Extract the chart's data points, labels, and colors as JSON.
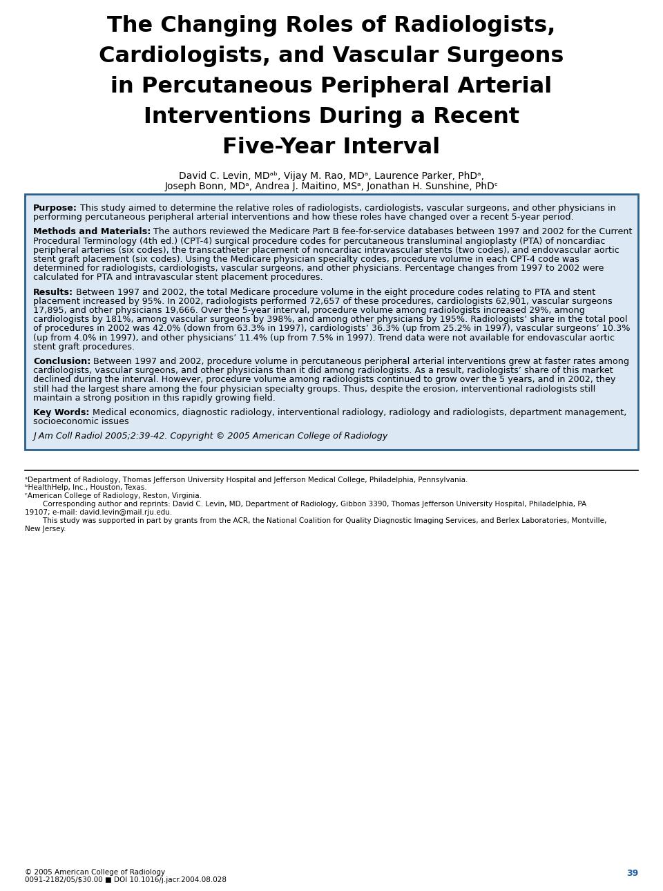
{
  "title_line1": "The Changing Roles of Radiologists,",
  "title_line2": "Cardiologists, and Vascular Surgeons",
  "title_line3": "in Percutaneous Peripheral Arterial",
  "title_line4": "Interventions During a Recent",
  "title_line5": "Five-Year Interval",
  "authors_line1": "David C. Levin, MDᵃᵇ, Vijay M. Rao, MDᵃ, Laurence Parker, PhDᵃ,",
  "authors_line2": "Joseph Bonn, MDᵃ, Andrea J. Maitino, MSᵃ, Jonathan H. Sunshine, PhDᶜ",
  "box_bg_color": "#dce8f3",
  "box_border_color": "#2a5f8a",
  "purpose_bold": "Purpose:",
  "purpose_text": " This study aimed to determine the relative roles of radiologists, cardiologists, vascular surgeons, and other physicians in performing percutaneous peripheral arterial interventions and how these roles have changed over a recent 5-year period.",
  "methods_bold": "Methods and Materials:",
  "methods_text": " The authors reviewed the Medicare Part B fee-for-service databases between 1997 and 2002 for the Current Procedural Terminology (4th ed.) (CPT-4) surgical procedure codes for percutaneous transluminal angioplasty (PTA) of noncardiac peripheral arteries (six codes), the transcatheter placement of noncardiac intravascular stents (two codes), and endovascular aortic stent graft placement (six codes). Using the Medicare physician specialty codes, procedure volume in each CPT-4 code was determined for radiologists, cardiologists, vascular surgeons, and other physicians. Percentage changes from 1997 to 2002 were calculated for PTA and intravascular stent placement procedures.",
  "results_bold": "Results:",
  "results_text": " Between 1997 and 2002, the total Medicare procedure volume in the eight procedure codes relating to PTA and stent placement increased by 95%. In 2002, radiologists performed 72,657 of these procedures, cardiologists 62,901, vascular surgeons 17,895, and other physicians 19,666. Over the 5-year interval, procedure volume among radiologists increased 29%, among cardiologists by 181%, among vascular surgeons by 398%, and among other physicians by 195%. Radiologists’ share in the total pool of procedures in 2002 was 42.0% (down from 63.3% in 1997), cardiologists’ 36.3% (up from 25.2% in 1997), vascular surgeons’ 10.3% (up from 4.0% in 1997), and other physicians’ 11.4% (up from 7.5% in 1997). Trend data were not available for endovascular aortic stent graft procedures.",
  "conclusion_bold": "Conclusion:",
  "conclusion_text": " Between 1997 and 2002, procedure volume in percutaneous peripheral arterial interventions grew at faster rates among cardiologists, vascular surgeons, and other physicians than it did among radiologists. As a result, radiologists’ share of this market declined during the interval. However, procedure volume among radiologists continued to grow over the 5 years, and in 2002, they still had the largest share among the four physician specialty groups. Thus, despite the erosion, interventional radiologists still maintain a strong position in this rapidly growing field.",
  "keywords_bold": "Key Words:",
  "keywords_text": " Medical economics, diagnostic radiology, interventional radiology, radiology and radiologists, department management, socioeconomic issues",
  "journal_italic": "J Am Coll Radiol 2005;2:39-42. Copyright © 2005 American College of Radiology",
  "footnote_a": "ᵃDepartment of Radiology, Thomas Jefferson University Hospital and Jefferson Medical College, Philadelphia, Pennsylvania.",
  "footnote_b": "ᵇHealthHelp, Inc., Houston, Texas.",
  "footnote_c": "ᶜAmerican College of Radiology, Reston, Virginia.",
  "footnote_corr1": "    Corresponding author and reprints: David C. Levin, MD, Department of Radiology, Gibbon 3390, Thomas Jefferson University Hospital, Philadelphia, PA",
  "footnote_corr2": "19107; e-mail: david.levin@mail.rju.edu.",
  "footnote_supp1": "    This study was supported in part by grants from the ACR, the National Coalition for Quality Diagnostic Imaging Services, and Berlex Laboratories, Montville,",
  "footnote_supp2": "New Jersey.",
  "copyright_line1": "© 2005 American College of Radiology",
  "copyright_line2": "0091-2182/05/$30.00 ■ DOI 10.1016/j.jacr.2004.08.028",
  "page_number": "39",
  "bg_color": "#ffffff",
  "text_color": "#000000"
}
